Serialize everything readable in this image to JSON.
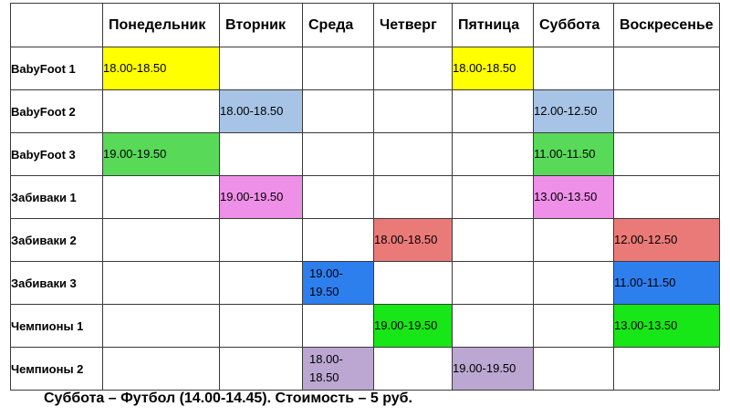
{
  "colors": {
    "yellow": "#ffff00",
    "light_blue": "#a7c4e6",
    "green": "#58d958",
    "pink": "#ee8fe8",
    "salmon": "#ea7a78",
    "blue": "#2e7fee",
    "bright_green": "#17e617",
    "lavender": "#bba7d1"
  },
  "schedule": {
    "days": [
      "Понедельник",
      "Вторник",
      "Среда",
      "Четверг",
      "Пятница",
      "Суббота",
      "Воскресенье"
    ],
    "groups": [
      {
        "name": "BabyFoot 1",
        "slots": [
          {
            "day": 0,
            "time": "18.00-18.50",
            "color": "yellow"
          },
          {
            "day": 4,
            "time": "18.00-18.50",
            "color": "yellow"
          }
        ]
      },
      {
        "name": "BabyFoot 2",
        "slots": [
          {
            "day": 1,
            "time": "18.00-18.50",
            "color": "light_blue"
          },
          {
            "day": 5,
            "time": "12.00-12.50",
            "color": "light_blue"
          }
        ]
      },
      {
        "name": "BabyFoot 3",
        "slots": [
          {
            "day": 0,
            "time": "19.00-19.50",
            "color": "green"
          },
          {
            "day": 5,
            "time": "11.00-11.50",
            "color": "green"
          }
        ]
      },
      {
        "name": "Забиваки 1",
        "slots": [
          {
            "day": 1,
            "time": "19.00-19.50",
            "color": "pink"
          },
          {
            "day": 5,
            "time": "13.00-13.50",
            "color": "pink"
          }
        ]
      },
      {
        "name": "Забиваки 2",
        "slots": [
          {
            "day": 3,
            "time": "18.00-18.50",
            "color": "salmon"
          },
          {
            "day": 6,
            "time": "12.00-12.50",
            "color": "salmon"
          }
        ]
      },
      {
        "name": "Забиваки 3",
        "slots": [
          {
            "day": 2,
            "time": "19.00-19.50",
            "color": "blue",
            "wrap": true
          },
          {
            "day": 6,
            "time": "11.00-11.50",
            "color": "blue"
          }
        ]
      },
      {
        "name": "Чемпионы 1",
        "slots": [
          {
            "day": 3,
            "time": "19.00-19.50",
            "color": "bright_green"
          },
          {
            "day": 6,
            "time": "13.00-13.50",
            "color": "bright_green"
          }
        ]
      },
      {
        "name": "Чемпионы 2",
        "slots": [
          {
            "day": 2,
            "time": "18.00-18.50",
            "color": "lavender",
            "wrap": true
          },
          {
            "day": 4,
            "time": "19.00-19.50",
            "color": "lavender"
          }
        ]
      }
    ]
  },
  "footnote": "Суббота – Футбол (14.00-14.45). Стоимость – 5 руб."
}
